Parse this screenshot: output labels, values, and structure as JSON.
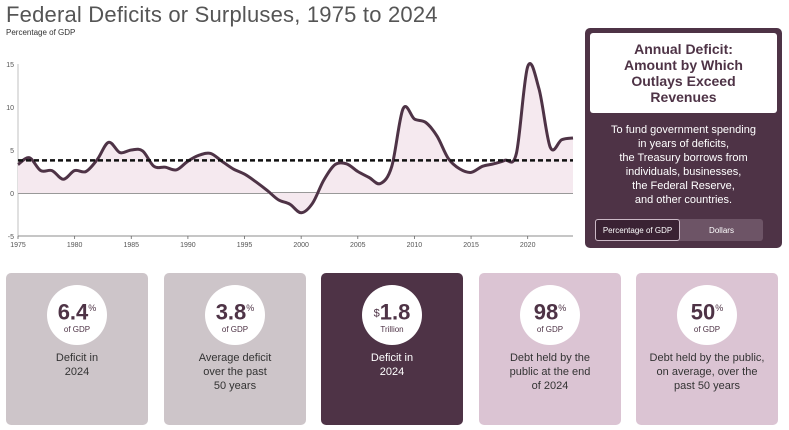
{
  "title": "Federal Deficits or Surpluses, 1975 to 2024",
  "subtitle": "Percentage of GDP",
  "chart_data": {
    "type": "area",
    "title": "Federal Deficits or Surpluses, 1975 to 2024",
    "ylabel": "Percentage of GDP",
    "xlabel": "",
    "xlim": [
      1975,
      2024
    ],
    "ylim": [
      -5,
      15
    ],
    "xticks": [
      1975,
      1980,
      1985,
      1990,
      1995,
      2000,
      2005,
      2010,
      2015,
      2020
    ],
    "yticks": [
      -5,
      0,
      5,
      10,
      15
    ],
    "x": [
      1975,
      1976,
      1977,
      1978,
      1979,
      1980,
      1981,
      1982,
      1983,
      1984,
      1985,
      1986,
      1987,
      1988,
      1989,
      1990,
      1991,
      1992,
      1993,
      1994,
      1995,
      1996,
      1997,
      1998,
      1999,
      2000,
      2001,
      2002,
      2003,
      2004,
      2005,
      2006,
      2007,
      2008,
      2009,
      2010,
      2011,
      2012,
      2013,
      2014,
      2015,
      2016,
      2017,
      2018,
      2019,
      2020,
      2021,
      2022,
      2023,
      2024
    ],
    "series": [
      {
        "name": "Deficit",
        "values": [
          3.3,
          4.1,
          2.6,
          2.6,
          1.6,
          2.6,
          2.5,
          3.9,
          5.9,
          4.7,
          5.0,
          4.9,
          3.1,
          3.0,
          2.7,
          3.7,
          4.4,
          4.6,
          3.7,
          2.8,
          2.2,
          1.3,
          0.3,
          -0.8,
          -1.3,
          -2.3,
          -1.2,
          1.5,
          3.3,
          3.4,
          2.5,
          1.8,
          1.1,
          3.1,
          9.8,
          8.6,
          8.2,
          6.6,
          4.0,
          2.8,
          2.4,
          3.1,
          3.4,
          3.8,
          4.6,
          14.7,
          12.1,
          5.3,
          6.2,
          6.4
        ]
      },
      {
        "name": "50-year average",
        "value": 3.8
      }
    ]
  },
  "sidebar": {
    "heading": "Annual Deficit:\nAmount by Which\nOutlays Exceed\nRevenues",
    "body": "To fund government spending\nin years of deficits,\nthe Treasury borrows from\nindividuals, businesses,\nthe Federal Reserve,\nand other countries.",
    "toggle": [
      "Percentage of GDP",
      "Dollars"
    ]
  },
  "cards": [
    {
      "value": "6.4",
      "suffix": "%",
      "prefix": "",
      "unit": "of GDP",
      "label": "Deficit in\n2024"
    },
    {
      "value": "3.8",
      "suffix": "%",
      "prefix": "",
      "unit": "of GDP",
      "label": "Average deficit\nover the past\n50 years"
    },
    {
      "value": "1.8",
      "suffix": "",
      "prefix": "$",
      "unit": "Trillion",
      "label": "Deficit in\n2024"
    },
    {
      "value": "98",
      "suffix": "%",
      "prefix": "",
      "unit": "of GDP",
      "label": "Debt held by the\npublic at the end\nof 2024"
    },
    {
      "value": "50",
      "suffix": "%",
      "prefix": "",
      "unit": "of GDP",
      "label": "Debt held by the public,\non average, over the\npast 50 years"
    }
  ],
  "colors": {
    "accent": "#4e3346",
    "card_gray": "#cdc5c9",
    "card_pink": "#dbc4d3",
    "fill": "#f5e9ef"
  }
}
